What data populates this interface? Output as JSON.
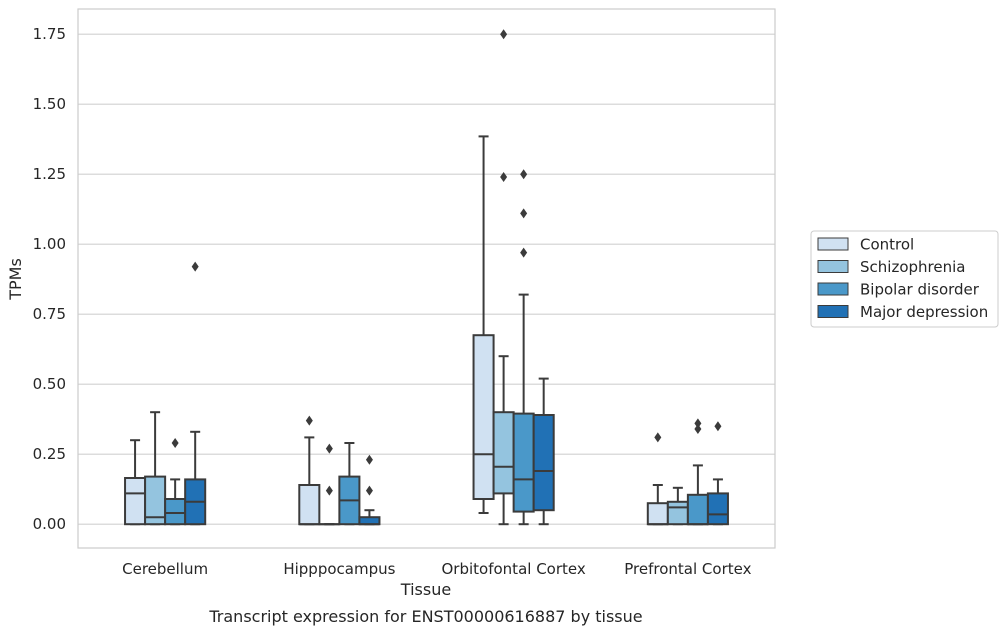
{
  "chart_data": {
    "type": "box",
    "xlabel": "Tissue",
    "ylabel": "TPMs",
    "caption": "Transcript expression for ENST00000616887 by tissue",
    "ylim": [
      -0.085,
      1.84
    ],
    "yticks": [
      0.0,
      0.25,
      0.5,
      0.75,
      1.0,
      1.25,
      1.5,
      1.75
    ],
    "ytick_labels": [
      "0.00",
      "0.25",
      "0.50",
      "0.75",
      "1.00",
      "1.25",
      "1.50",
      "1.75"
    ],
    "grid": "horizontal",
    "legend_position": "right",
    "categories": [
      "Cerebellum",
      "Hipppocampus",
      "Orbitofontal Cortex",
      "Prefrontal Cortex"
    ],
    "series": [
      {
        "name": "Control",
        "color": "#d0e1f2",
        "boxes": [
          {
            "whislo": 0.0,
            "q1": 0.0,
            "med": 0.11,
            "q3": 0.165,
            "whishi": 0.3,
            "fliers": []
          },
          {
            "whislo": 0.0,
            "q1": 0.0,
            "med": 0.0,
            "q3": 0.14,
            "whishi": 0.31,
            "fliers": [
              0.37
            ]
          },
          {
            "whislo": 0.04,
            "q1": 0.09,
            "med": 0.25,
            "q3": 0.675,
            "whishi": 1.385,
            "fliers": []
          },
          {
            "whislo": 0.0,
            "q1": 0.0,
            "med": 0.0,
            "q3": 0.075,
            "whishi": 0.14,
            "fliers": [
              0.31
            ]
          }
        ]
      },
      {
        "name": "Schizophrenia",
        "color": "#94c4df",
        "boxes": [
          {
            "whislo": 0.0,
            "q1": 0.0,
            "med": 0.025,
            "q3": 0.17,
            "whishi": 0.4,
            "fliers": []
          },
          {
            "whislo": 0.0,
            "q1": 0.0,
            "med": 0.0,
            "q3": 0.0,
            "whishi": 0.0,
            "fliers": [
              0.12,
              0.27
            ]
          },
          {
            "whislo": 0.0,
            "q1": 0.11,
            "med": 0.205,
            "q3": 0.4,
            "whishi": 0.6,
            "fliers": [
              1.24,
              1.75
            ]
          },
          {
            "whislo": 0.0,
            "q1": 0.0,
            "med": 0.06,
            "q3": 0.08,
            "whishi": 0.13,
            "fliers": []
          }
        ]
      },
      {
        "name": "Bipolar disorder",
        "color": "#4a98c9",
        "boxes": [
          {
            "whislo": 0.0,
            "q1": 0.0,
            "med": 0.04,
            "q3": 0.09,
            "whishi": 0.16,
            "fliers": [
              0.29
            ]
          },
          {
            "whislo": 0.0,
            "q1": 0.0,
            "med": 0.085,
            "q3": 0.17,
            "whishi": 0.29,
            "fliers": []
          },
          {
            "whislo": 0.0,
            "q1": 0.045,
            "med": 0.16,
            "q3": 0.395,
            "whishi": 0.82,
            "fliers": [
              0.97,
              1.11,
              1.25
            ]
          },
          {
            "whislo": 0.0,
            "q1": 0.0,
            "med": 0.0,
            "q3": 0.105,
            "whishi": 0.21,
            "fliers": [
              0.34,
              0.36
            ]
          }
        ]
      },
      {
        "name": "Major depression",
        "color": "#2171b5",
        "boxes": [
          {
            "whislo": 0.0,
            "q1": 0.0,
            "med": 0.08,
            "q3": 0.16,
            "whishi": 0.33,
            "fliers": [
              0.92
            ]
          },
          {
            "whislo": 0.0,
            "q1": 0.0,
            "med": 0.0,
            "q3": 0.025,
            "whishi": 0.05,
            "fliers": [
              0.12,
              0.23
            ]
          },
          {
            "whislo": 0.0,
            "q1": 0.05,
            "med": 0.19,
            "q3": 0.39,
            "whishi": 0.52,
            "fliers": []
          },
          {
            "whislo": 0.0,
            "q1": 0.0,
            "med": 0.035,
            "q3": 0.11,
            "whishi": 0.16,
            "fliers": [
              0.35
            ]
          }
        ]
      }
    ]
  }
}
